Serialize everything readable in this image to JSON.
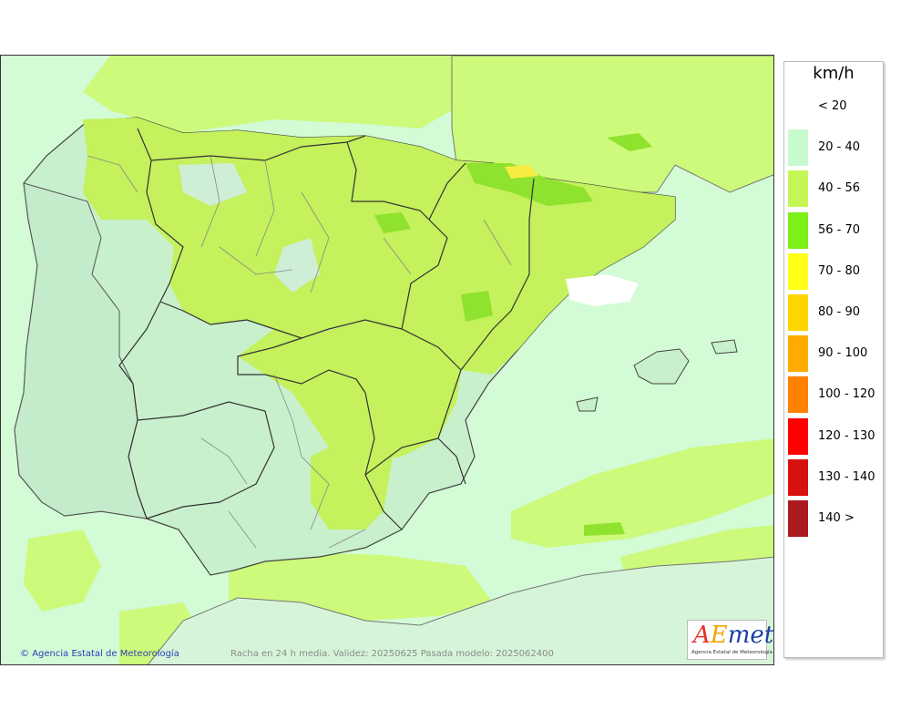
{
  "map": {
    "credit": "Agencia Estatal de Meteorología",
    "caption": "Racha en 24 h media. Validez: 20250625 Pasada modelo: 2025062400"
  },
  "logo": {
    "word": "AEmet",
    "subtitle": "Agencia Estatal de Meteorología"
  },
  "legend": {
    "unit": "km/h",
    "items": [
      {
        "label": "< 20",
        "color": ""
      },
      {
        "label": "20 - 40",
        "color": "#c8fad0"
      },
      {
        "label": "40 - 56",
        "color": "#c4f755"
      },
      {
        "label": "56 - 70",
        "color": "#7cf019"
      },
      {
        "label": "70 - 80",
        "color": "#ffff17"
      },
      {
        "label": "80 - 90",
        "color": "#ffd500"
      },
      {
        "label": "90 - 100",
        "color": "#ffab00"
      },
      {
        "label": "100 - 120",
        "color": "#ff8100"
      },
      {
        "label": "120 - 130",
        "color": "#ff0000"
      },
      {
        "label": "130 - 140",
        "color": "#d71010"
      },
      {
        "label": "140 >",
        "color": "#ab1a1f"
      }
    ]
  }
}
